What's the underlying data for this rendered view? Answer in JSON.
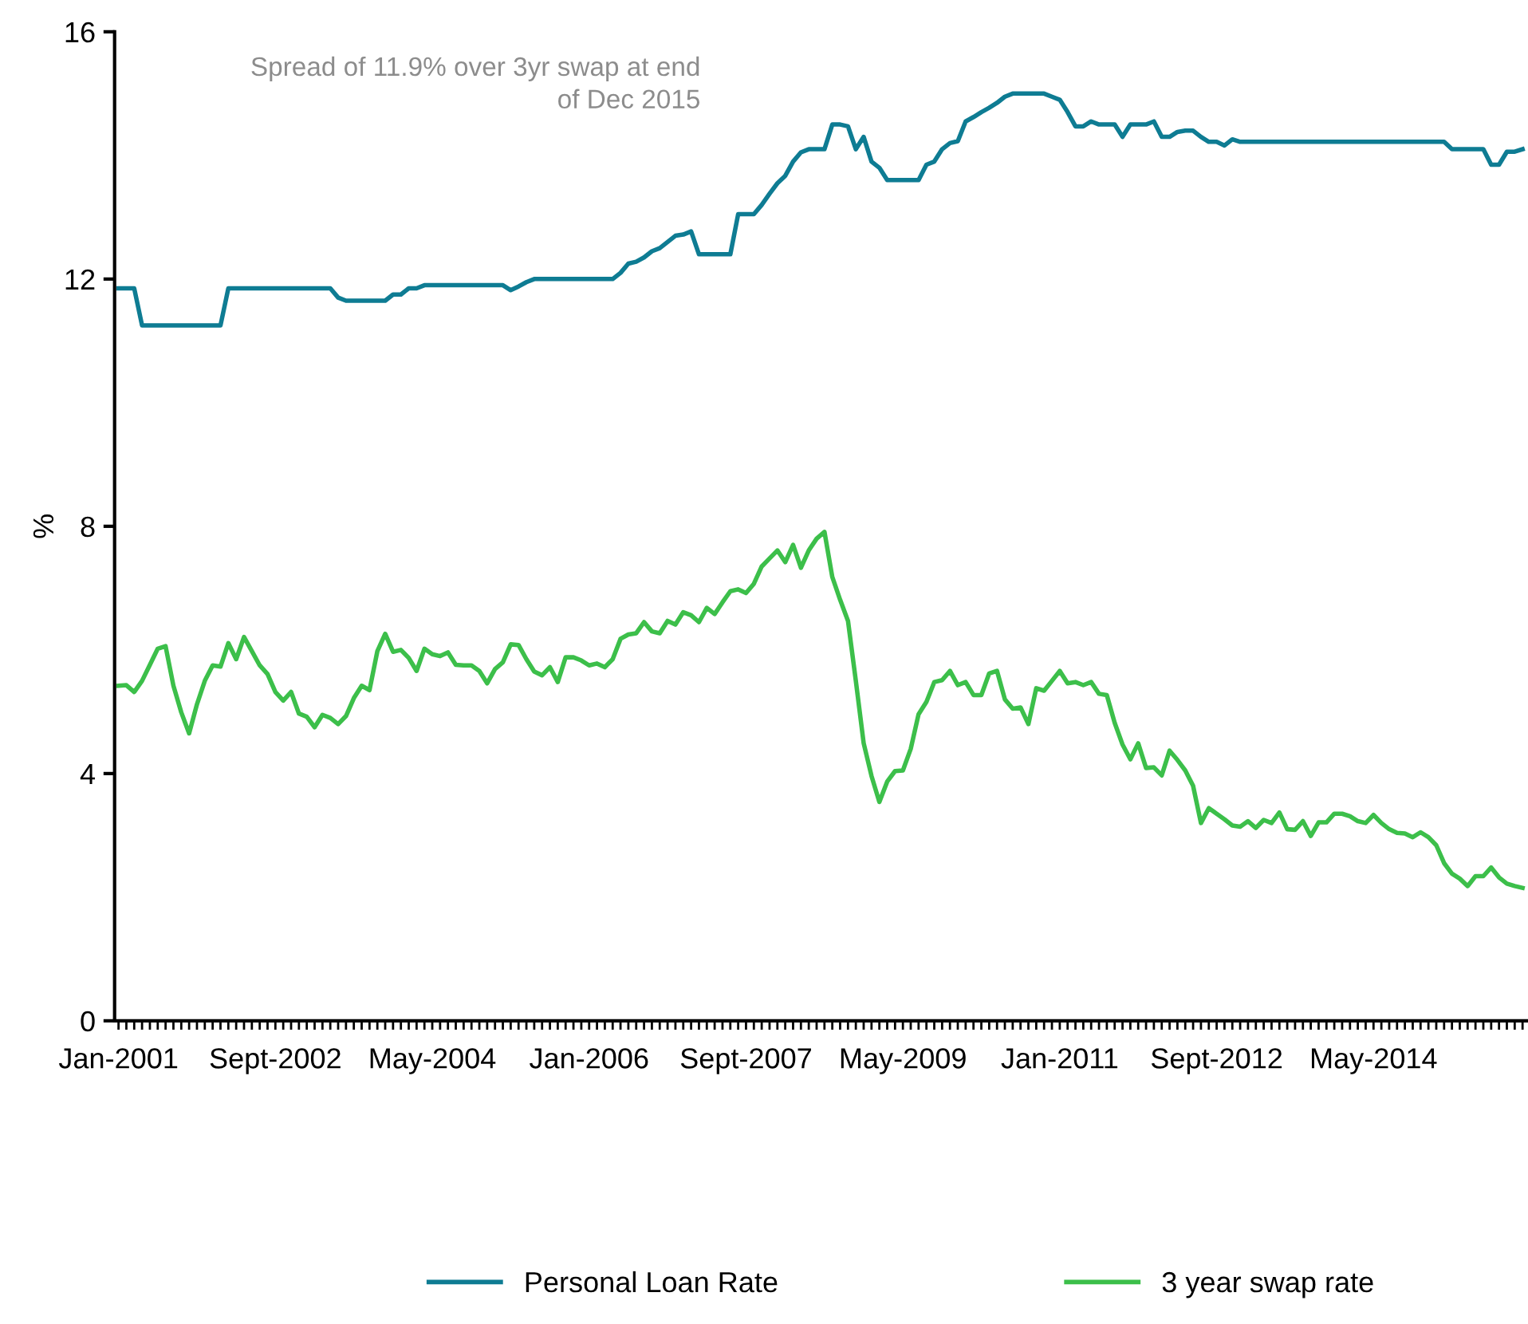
{
  "chart_data": {
    "type": "line",
    "ylabel": "%",
    "annotations": [
      "Spread of 11.9% over 3yr swap at end\nof Dec 2015"
    ],
    "categories": [
      "Jan-2001",
      null,
      null,
      null,
      null,
      null,
      null,
      null,
      null,
      null,
      null,
      null,
      null,
      null,
      null,
      null,
      null,
      null,
      null,
      null,
      "Sept-2002",
      null,
      null,
      null,
      null,
      null,
      null,
      null,
      null,
      null,
      null,
      null,
      null,
      null,
      null,
      null,
      null,
      null,
      null,
      null,
      "May-2004",
      null,
      null,
      null,
      null,
      null,
      null,
      null,
      null,
      null,
      null,
      null,
      null,
      null,
      null,
      null,
      null,
      null,
      null,
      null,
      "Jan-2006",
      null,
      null,
      null,
      null,
      null,
      null,
      null,
      null,
      null,
      null,
      null,
      null,
      null,
      null,
      null,
      null,
      null,
      null,
      null,
      "Sept-2007",
      null,
      null,
      null,
      null,
      null,
      null,
      null,
      null,
      null,
      null,
      null,
      null,
      null,
      null,
      null,
      null,
      null,
      null,
      null,
      "May-2009",
      null,
      null,
      null,
      null,
      null,
      null,
      null,
      null,
      null,
      null,
      null,
      null,
      null,
      null,
      null,
      null,
      null,
      null,
      null,
      "Jan-2011",
      null,
      null,
      null,
      null,
      null,
      null,
      null,
      null,
      null,
      null,
      null,
      null,
      null,
      null,
      null,
      null,
      null,
      null,
      null,
      "Sept-2012",
      null,
      null,
      null,
      null,
      null,
      null,
      null,
      null,
      null,
      null,
      null,
      null,
      null,
      null,
      null,
      null,
      null,
      null,
      null,
      "May-2014",
      null,
      null,
      null,
      null,
      null,
      null,
      null,
      null,
      null,
      null,
      null,
      null,
      null,
      null,
      null,
      null,
      null,
      null,
      null
    ],
    "series": [
      {
        "name": "Personal Loan Rate",
        "color": "#0e7c93",
        "values": [
          11.85,
          11.85,
          11.85,
          11.25,
          11.25,
          11.25,
          11.25,
          11.25,
          11.25,
          11.25,
          11.25,
          11.25,
          11.25,
          11.25,
          11.85,
          11.85,
          11.85,
          11.85,
          11.85,
          11.85,
          11.85,
          11.85,
          11.85,
          11.85,
          11.85,
          11.85,
          11.85,
          11.85,
          11.7,
          11.65,
          11.65,
          11.65,
          11.65,
          11.65,
          11.65,
          11.75,
          11.75,
          11.85,
          11.85,
          11.9,
          11.9,
          11.9,
          11.9,
          11.9,
          11.9,
          11.9,
          11.9,
          11.9,
          11.9,
          11.9,
          11.82,
          11.88,
          11.95,
          12.0,
          12.0,
          12.0,
          12.0,
          12.0,
          12.0,
          12.0,
          12.0,
          12.0,
          12.0,
          12.0,
          12.1,
          12.25,
          12.28,
          12.35,
          12.45,
          12.5,
          12.6,
          12.7,
          12.72,
          12.77,
          12.4,
          12.4,
          12.4,
          12.4,
          12.4,
          13.05,
          13.05,
          13.05,
          13.2,
          13.38,
          13.55,
          13.67,
          13.9,
          14.05,
          14.1,
          14.1,
          14.1,
          14.5,
          14.5,
          14.47,
          14.1,
          14.3,
          13.9,
          13.8,
          13.6,
          13.6,
          13.6,
          13.6,
          13.6,
          13.85,
          13.9,
          14.1,
          14.2,
          14.23,
          14.55,
          14.62,
          14.7,
          14.77,
          14.85,
          14.95,
          15.0,
          15.0,
          15.0,
          15.0,
          15.0,
          14.95,
          14.9,
          14.7,
          14.47,
          14.47,
          14.55,
          14.5,
          14.5,
          14.5,
          14.3,
          14.5,
          14.5,
          14.5,
          14.55,
          14.3,
          14.3,
          14.38,
          14.4,
          14.4,
          14.3,
          14.22,
          14.22,
          14.16,
          14.26,
          14.22,
          14.22,
          14.22,
          14.22,
          14.22,
          14.22,
          14.22,
          14.22,
          14.22,
          14.22,
          14.22,
          14.22,
          14.22,
          14.22,
          14.22,
          14.22,
          14.22,
          14.22,
          14.22,
          14.22,
          14.22,
          14.22,
          14.22,
          14.22,
          14.22,
          14.22,
          14.22,
          14.1,
          14.1,
          14.1,
          14.1,
          14.1,
          13.85,
          13.85,
          14.06,
          14.06,
          14.1
        ]
      },
      {
        "name": "3 year swap rate",
        "color": "#3cbf4a",
        "values": [
          5.42,
          5.43,
          5.32,
          5.5,
          5.76,
          6.02,
          6.06,
          5.42,
          4.99,
          4.65,
          5.12,
          5.5,
          5.75,
          5.73,
          6.11,
          5.85,
          6.21,
          5.98,
          5.75,
          5.61,
          5.32,
          5.18,
          5.32,
          4.97,
          4.92,
          4.75,
          4.95,
          4.9,
          4.8,
          4.93,
          5.22,
          5.42,
          5.35,
          5.98,
          6.26,
          5.97,
          6.0,
          5.87,
          5.66,
          6.02,
          5.93,
          5.9,
          5.96,
          5.76,
          5.75,
          5.75,
          5.66,
          5.46,
          5.69,
          5.8,
          6.09,
          6.08,
          5.85,
          5.65,
          5.59,
          5.72,
          5.48,
          5.88,
          5.88,
          5.83,
          5.75,
          5.78,
          5.72,
          5.85,
          6.18,
          6.25,
          6.27,
          6.45,
          6.3,
          6.27,
          6.47,
          6.41,
          6.61,
          6.56,
          6.45,
          6.68,
          6.58,
          6.77,
          6.95,
          6.98,
          6.92,
          7.07,
          7.35,
          7.48,
          7.61,
          7.42,
          7.7,
          7.33,
          7.61,
          7.8,
          7.91,
          7.18,
          6.81,
          6.47,
          5.5,
          4.49,
          3.96,
          3.54,
          3.87,
          4.04,
          4.05,
          4.4,
          4.96,
          5.16,
          5.48,
          5.51,
          5.66,
          5.43,
          5.48,
          5.27,
          5.27,
          5.62,
          5.66,
          5.2,
          5.05,
          5.07,
          4.8,
          5.38,
          5.34,
          5.5,
          5.66,
          5.46,
          5.48,
          5.43,
          5.48,
          5.29,
          5.27,
          4.82,
          4.47,
          4.23,
          4.49,
          4.09,
          4.1,
          3.97,
          4.37,
          4.22,
          4.05,
          3.8,
          3.2,
          3.44,
          3.35,
          3.26,
          3.16,
          3.14,
          3.23,
          3.12,
          3.25,
          3.2,
          3.37,
          3.1,
          3.09,
          3.23,
          2.99,
          3.21,
          3.21,
          3.35,
          3.35,
          3.31,
          3.23,
          3.2,
          3.33,
          3.2,
          3.1,
          3.04,
          3.03,
          2.97,
          3.05,
          2.97,
          2.84,
          2.55,
          2.38,
          2.3,
          2.18,
          2.34,
          2.34,
          2.48,
          2.32,
          2.22,
          2.18,
          2.15
        ]
      }
    ],
    "ylim": [
      0,
      16
    ],
    "yticks": [
      0,
      4,
      8,
      12,
      16
    ],
    "grid": false,
    "legend": "bottom",
    "marker": "none",
    "line_style": "solid"
  }
}
